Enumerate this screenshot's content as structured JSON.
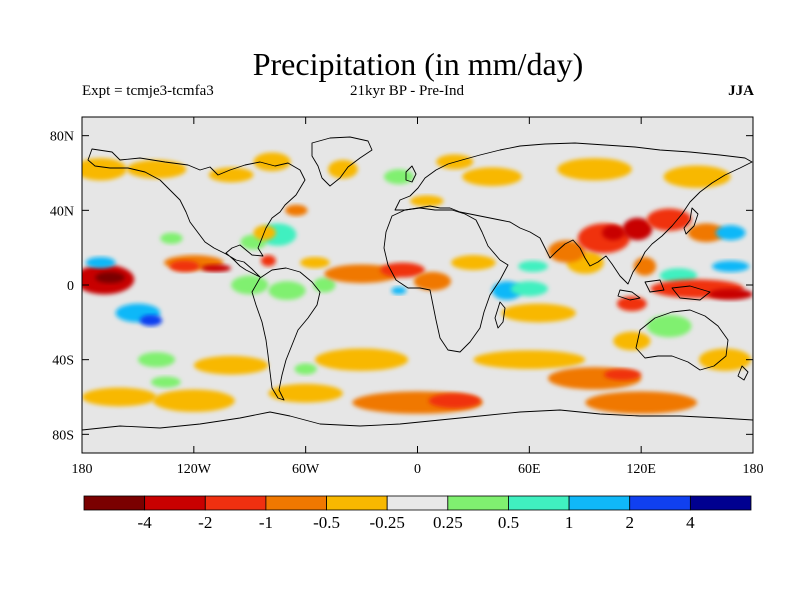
{
  "title": "Precipitation (in mm/day)",
  "subtitle_left": "Expt = tcmje3-tcmfa3",
  "subtitle_center": "21kyr BP - Pre-Ind",
  "subtitle_right": "JJA",
  "lat_ticks": [
    {
      "label": "80N",
      "value": 80
    },
    {
      "label": "40N",
      "value": 40
    },
    {
      "label": "0",
      "value": 0
    },
    {
      "label": "40S",
      "value": -40
    },
    {
      "label": "80S",
      "value": -80
    }
  ],
  "lon_ticks": [
    {
      "label": "180",
      "value": -180
    },
    {
      "label": "120W",
      "value": -120
    },
    {
      "label": "60W",
      "value": -60
    },
    {
      "label": "0",
      "value": 0
    },
    {
      "label": "60E",
      "value": 60
    },
    {
      "label": "120E",
      "value": 120
    },
    {
      "label": "180",
      "value": 180
    }
  ],
  "colorbar": {
    "colors": [
      "#7a0000",
      "#c80000",
      "#f03010",
      "#f07800",
      "#f8b800",
      "#e8e8e8",
      "#80f070",
      "#40f0c0",
      "#10b8f8",
      "#1040f0",
      "#000090"
    ],
    "labels": [
      "-4",
      "-2",
      "-1",
      "-0.5",
      "-0.25",
      "0.25",
      "0.5",
      "1",
      "2",
      "4"
    ]
  },
  "colors": {
    "background": "#e6e6e6",
    "coast": "#000000"
  },
  "anomaly_regions": [
    {
      "lon": -168,
      "lat": 3,
      "rlon": 16,
      "rlat": 8,
      "level": 1
    },
    {
      "lon": -165,
      "lat": 4,
      "rlon": 8,
      "rlat": 3,
      "level": 0
    },
    {
      "lon": -170,
      "lat": 12,
      "rlon": 8,
      "rlat": 3,
      "level": 8
    },
    {
      "lon": -150,
      "lat": -15,
      "rlon": 12,
      "rlat": 5,
      "level": 8
    },
    {
      "lon": -143,
      "lat": -19,
      "rlon": 6,
      "rlat": 3,
      "level": 9
    },
    {
      "lon": -120,
      "lat": 12,
      "rlon": 16,
      "rlat": 4,
      "level": 3
    },
    {
      "lon": -125,
      "lat": 10,
      "rlon": 8,
      "rlat": 3,
      "level": 2
    },
    {
      "lon": -108,
      "lat": 9,
      "rlon": 8,
      "rlat": 2,
      "level": 1
    },
    {
      "lon": -132,
      "lat": 25,
      "rlon": 6,
      "rlat": 3,
      "level": 6
    },
    {
      "lon": -90,
      "lat": 0,
      "rlon": 10,
      "rlat": 5,
      "level": 6
    },
    {
      "lon": -80,
      "lat": 13,
      "rlon": 4,
      "rlat": 3,
      "level": 2
    },
    {
      "lon": -70,
      "lat": -3,
      "rlon": 10,
      "rlat": 5,
      "level": 6
    },
    {
      "lon": -75,
      "lat": 27,
      "rlon": 10,
      "rlat": 6,
      "level": 7
    },
    {
      "lon": -88,
      "lat": 23,
      "rlon": 7,
      "rlat": 4,
      "level": 6
    },
    {
      "lon": -82,
      "lat": 28,
      "rlon": 6,
      "rlat": 4,
      "level": 4
    },
    {
      "lon": -65,
      "lat": 40,
      "rlon": 6,
      "rlat": 3,
      "level": 3
    },
    {
      "lon": -55,
      "lat": 12,
      "rlon": 8,
      "rlat": 3,
      "level": 4
    },
    {
      "lon": -50,
      "lat": 0,
      "rlon": 6,
      "rlat": 4,
      "level": 6
    },
    {
      "lon": -170,
      "lat": 62,
      "rlon": 14,
      "rlat": 6,
      "level": 4
    },
    {
      "lon": -140,
      "lat": 62,
      "rlon": 16,
      "rlat": 5,
      "level": 4
    },
    {
      "lon": -100,
      "lat": 59,
      "rlon": 12,
      "rlat": 4,
      "level": 4
    },
    {
      "lon": -78,
      "lat": 66,
      "rlon": 10,
      "rlat": 5,
      "level": 4
    },
    {
      "lon": -40,
      "lat": 62,
      "rlon": 8,
      "rlat": 5,
      "level": 4
    },
    {
      "lon": -10,
      "lat": 58,
      "rlon": 8,
      "rlat": 4,
      "level": 6
    },
    {
      "lon": 5,
      "lat": 45,
      "rlon": 9,
      "rlat": 3,
      "level": 4
    },
    {
      "lon": 20,
      "lat": 66,
      "rlon": 10,
      "rlat": 4,
      "level": 4
    },
    {
      "lon": 40,
      "lat": 58,
      "rlon": 16,
      "rlat": 5,
      "level": 4
    },
    {
      "lon": 95,
      "lat": 62,
      "rlon": 20,
      "rlat": 6,
      "level": 4
    },
    {
      "lon": 150,
      "lat": 58,
      "rlon": 18,
      "rlat": 6,
      "level": 4
    },
    {
      "lon": -30,
      "lat": 6,
      "rlon": 20,
      "rlat": 5,
      "level": 3
    },
    {
      "lon": -8,
      "lat": 8,
      "rlon": 12,
      "rlat": 4,
      "level": 2
    },
    {
      "lon": 8,
      "lat": 2,
      "rlon": 10,
      "rlat": 5,
      "level": 3
    },
    {
      "lon": -10,
      "lat": -3,
      "rlon": 4,
      "rlat": 2,
      "level": 8
    },
    {
      "lon": 30,
      "lat": 12,
      "rlon": 12,
      "rlat": 4,
      "level": 4
    },
    {
      "lon": 48,
      "lat": -3,
      "rlon": 8,
      "rlat": 5,
      "level": 8
    },
    {
      "lon": 60,
      "lat": -2,
      "rlon": 10,
      "rlat": 4,
      "level": 7
    },
    {
      "lon": 65,
      "lat": -15,
      "rlon": 20,
      "rlat": 5,
      "level": 4
    },
    {
      "lon": 62,
      "lat": 10,
      "rlon": 8,
      "rlat": 3,
      "level": 7
    },
    {
      "lon": 90,
      "lat": 12,
      "rlon": 10,
      "rlat": 6,
      "level": 4
    },
    {
      "lon": 80,
      "lat": 18,
      "rlon": 10,
      "rlat": 6,
      "level": 3
    },
    {
      "lon": 100,
      "lat": 25,
      "rlon": 14,
      "rlat": 8,
      "level": 2
    },
    {
      "lon": 105,
      "lat": 28,
      "rlon": 6,
      "rlat": 4,
      "level": 1
    },
    {
      "lon": 118,
      "lat": 30,
      "rlon": 8,
      "rlat": 6,
      "level": 1
    },
    {
      "lon": 135,
      "lat": 35,
      "rlon": 12,
      "rlat": 6,
      "level": 2
    },
    {
      "lon": 155,
      "lat": 28,
      "rlon": 10,
      "rlat": 5,
      "level": 3
    },
    {
      "lon": 122,
      "lat": 10,
      "rlon": 6,
      "rlat": 5,
      "level": 3
    },
    {
      "lon": 140,
      "lat": 5,
      "rlon": 10,
      "rlat": 4,
      "level": 7
    },
    {
      "lon": 168,
      "lat": 10,
      "rlon": 10,
      "rlat": 3,
      "level": 8
    },
    {
      "lon": 168,
      "lat": 28,
      "rlon": 8,
      "rlat": 4,
      "level": 8
    },
    {
      "lon": 150,
      "lat": -2,
      "rlon": 25,
      "rlat": 5,
      "level": 2
    },
    {
      "lon": 168,
      "lat": -5,
      "rlon": 12,
      "rlat": 3,
      "level": 1
    },
    {
      "lon": 115,
      "lat": -10,
      "rlon": 8,
      "rlat": 4,
      "level": 2
    },
    {
      "lon": 115,
      "lat": -30,
      "rlon": 10,
      "rlat": 5,
      "level": 4
    },
    {
      "lon": 135,
      "lat": -22,
      "rlon": 12,
      "rlat": 6,
      "level": 6
    },
    {
      "lon": 165,
      "lat": -40,
      "rlon": 14,
      "rlat": 6,
      "level": 4
    },
    {
      "lon": -100,
      "lat": -43,
      "rlon": 20,
      "rlat": 5,
      "level": 4
    },
    {
      "lon": -140,
      "lat": -40,
      "rlon": 10,
      "rlat": 4,
      "level": 6
    },
    {
      "lon": -30,
      "lat": -40,
      "rlon": 25,
      "rlat": 6,
      "level": 4
    },
    {
      "lon": 60,
      "lat": -40,
      "rlon": 30,
      "rlat": 5,
      "level": 4
    },
    {
      "lon": 95,
      "lat": -50,
      "rlon": 25,
      "rlat": 6,
      "level": 3
    },
    {
      "lon": 110,
      "lat": -48,
      "rlon": 10,
      "rlat": 3,
      "level": 2
    },
    {
      "lon": -160,
      "lat": -60,
      "rlon": 20,
      "rlat": 5,
      "level": 4
    },
    {
      "lon": -120,
      "lat": -62,
      "rlon": 22,
      "rlat": 6,
      "level": 4
    },
    {
      "lon": -60,
      "lat": -58,
      "rlon": 20,
      "rlat": 5,
      "level": 4
    },
    {
      "lon": 0,
      "lat": -63,
      "rlon": 35,
      "rlat": 6,
      "level": 3
    },
    {
      "lon": 20,
      "lat": -62,
      "rlon": 14,
      "rlat": 4,
      "level": 2
    },
    {
      "lon": 120,
      "lat": -63,
      "rlon": 30,
      "rlat": 6,
      "level": 3
    },
    {
      "lon": -60,
      "lat": -45,
      "rlon": 6,
      "rlat": 3,
      "level": 6
    },
    {
      "lon": -135,
      "lat": -52,
      "rlon": 8,
      "rlat": 3,
      "level": 6
    }
  ]
}
